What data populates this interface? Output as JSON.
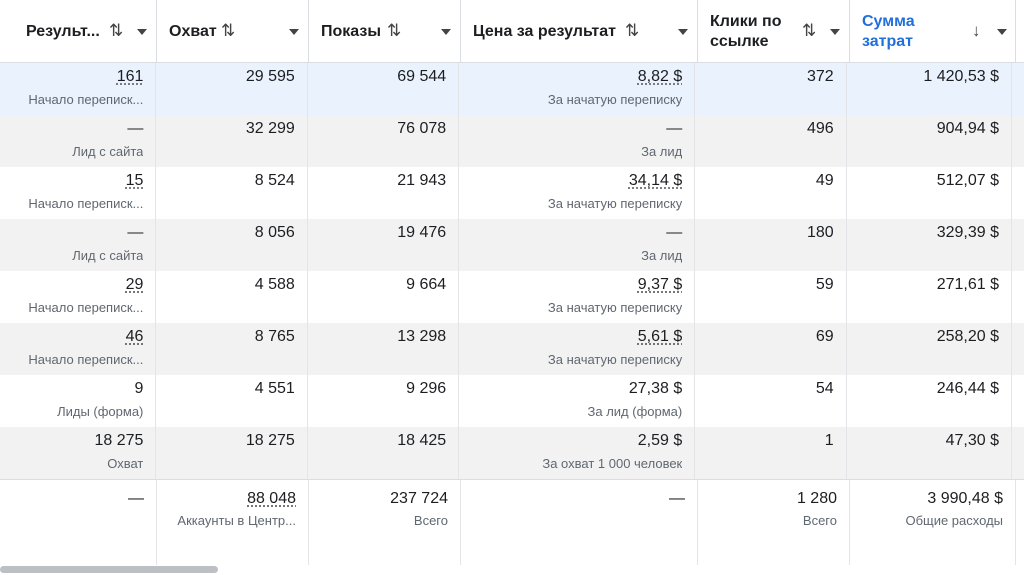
{
  "headers": [
    {
      "label": "Результ...",
      "sort": "⇅",
      "active": false
    },
    {
      "label": "Охват",
      "sort": "⇅",
      "active": false
    },
    {
      "label": "Показы",
      "sort": "⇅",
      "active": false
    },
    {
      "label": "Цена за результат",
      "sort": "⇅",
      "active": false
    },
    {
      "label_line1": "Клики по",
      "label_line2": "ссылке",
      "sort": "⇅",
      "active": false
    },
    {
      "label_line1": "Сумма",
      "label_line2": "затрат",
      "sort": "↓",
      "active": true
    }
  ],
  "rows": [
    {
      "results": "161",
      "results_sub": "Начало переписк...",
      "reach": "29 595",
      "impressions": "69 544",
      "cpr": "8,82 $",
      "cpr_sub": "За начатую переписку",
      "clicks": "372",
      "spend": "1 420,53 $"
    },
    {
      "results": "—",
      "results_sub": "Лид с сайта",
      "reach": "32 299",
      "impressions": "76 078",
      "cpr": "—",
      "cpr_sub": "За лид",
      "clicks": "496",
      "spend": "904,94 $"
    },
    {
      "results": "15",
      "results_sub": "Начало переписк...",
      "reach": "8 524",
      "impressions": "21 943",
      "cpr": "34,14 $",
      "cpr_sub": "За начатую переписку",
      "clicks": "49",
      "spend": "512,07 $"
    },
    {
      "results": "—",
      "results_sub": "Лид с сайта",
      "reach": "8 056",
      "impressions": "19 476",
      "cpr": "—",
      "cpr_sub": "За лид",
      "clicks": "180",
      "spend": "329,39 $"
    },
    {
      "results": "29",
      "results_sub": "Начало переписк...",
      "reach": "4 588",
      "impressions": "9 664",
      "cpr": "9,37 $",
      "cpr_sub": "За начатую переписку",
      "clicks": "59",
      "spend": "271,61 $"
    },
    {
      "results": "46",
      "results_sub": "Начало переписк...",
      "reach": "8 765",
      "impressions": "13 298",
      "cpr": "5,61 $",
      "cpr_sub": "За начатую переписку",
      "clicks": "69",
      "spend": "258,20 $"
    },
    {
      "results": "9",
      "results_sub": "Лиды (форма)",
      "reach": "4 551",
      "impressions": "9 296",
      "cpr": "27,38 $",
      "cpr_sub": "За лид (форма)",
      "clicks": "54",
      "spend": "246,44 $"
    },
    {
      "results": "18 275",
      "results_sub": "Охват",
      "reach": "18 275",
      "impressions": "18 425",
      "cpr": "2,59 $",
      "cpr_sub": "За охват 1 000 человек",
      "clicks": "1",
      "spend": "47,30 $"
    }
  ],
  "totals": {
    "results": "—",
    "reach": "88 048",
    "reach_sub": "Аккаунты в Центр...",
    "impressions": "237 724",
    "impressions_sub": "Всего",
    "cpr": "—",
    "clicks": "1 280",
    "clicks_sub": "Всего",
    "spend": "3 990,48 $",
    "spend_sub": "Общие расходы"
  },
  "colors": {
    "accent": "#216fdb",
    "row_highlight": "#eaf2fd",
    "row_alt": "#f2f2f2"
  }
}
